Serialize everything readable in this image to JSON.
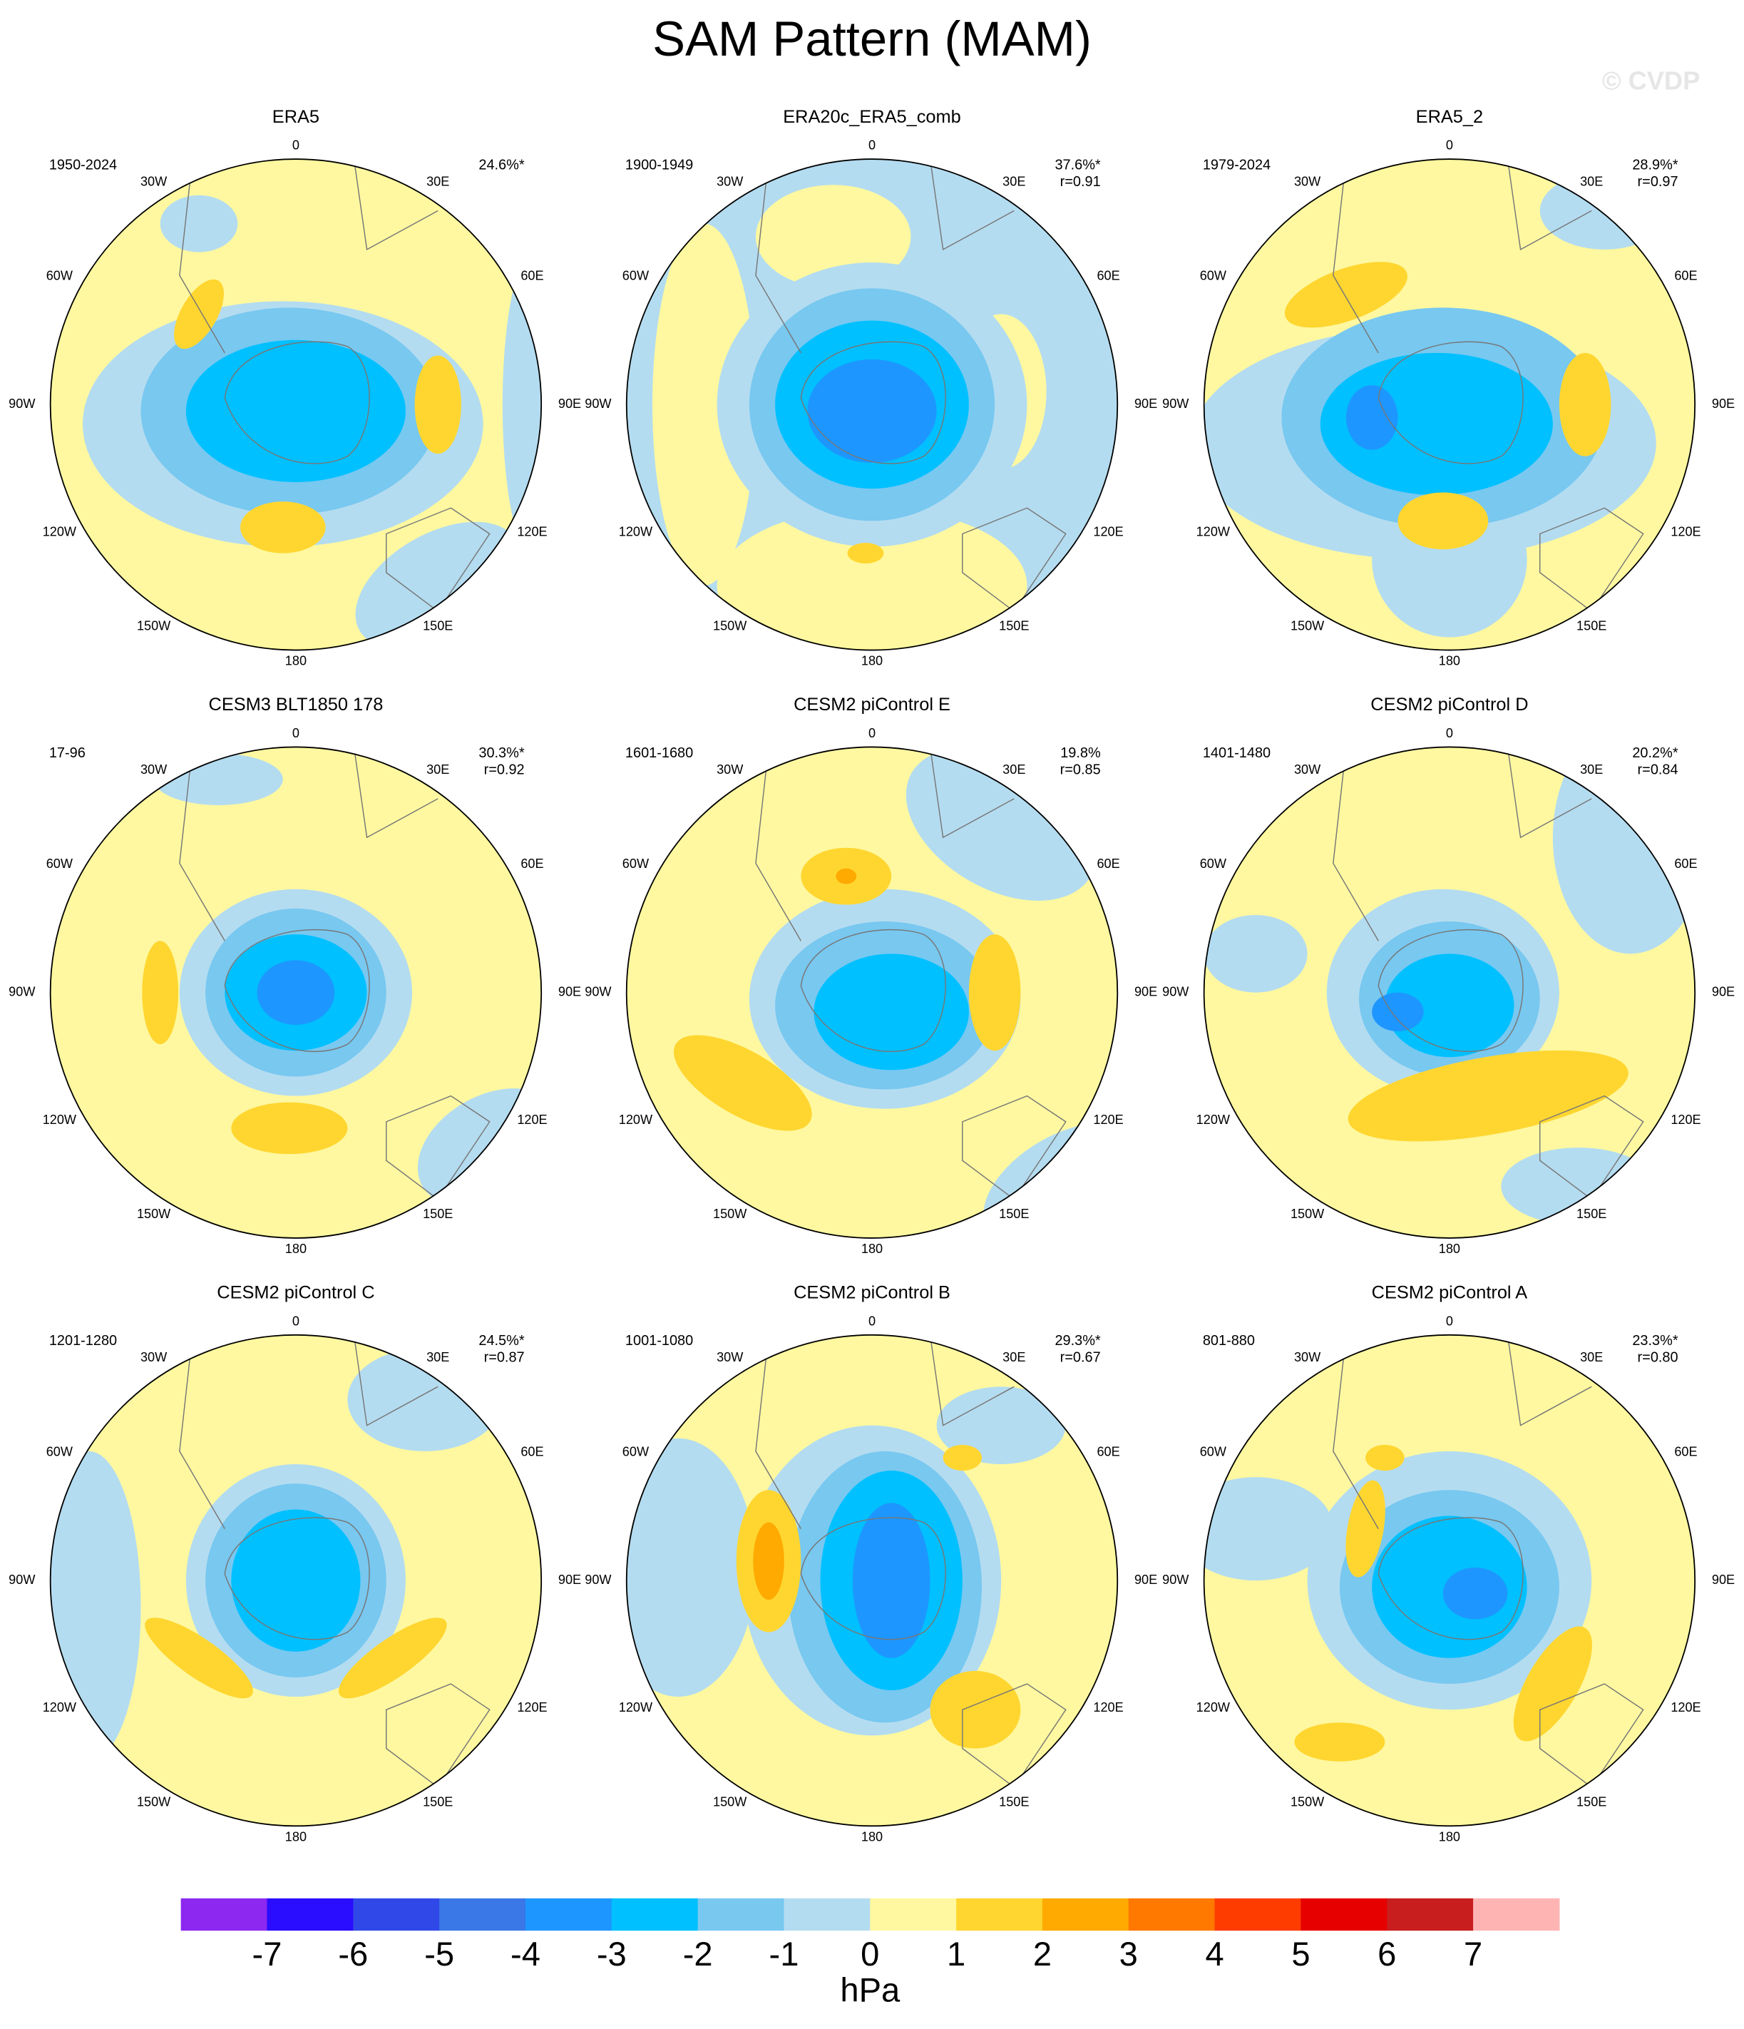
{
  "title": "SAM Pattern (MAM)",
  "watermark": "© CVDP",
  "lon_labels": [
    "0",
    "30E",
    "60E",
    "90E",
    "120E",
    "150E",
    "180",
    "150W",
    "120W",
    "90W",
    "60W",
    "30W"
  ],
  "panels": [
    {
      "title": "ERA5",
      "period": "1950-2024",
      "variance": "24.6%*"
    },
    {
      "title": "ERA20c_ERA5_comb",
      "period": "1900-1949",
      "variance": "37.6%*",
      "r": "r=0.91"
    },
    {
      "title": "ERA5_2",
      "period": "1979-2024",
      "variance": "28.9%*",
      "r": "r=0.97"
    },
    {
      "title": "CESM3 BLT1850 178",
      "period": "17-96",
      "variance": "30.3%*",
      "r": "r=0.92"
    },
    {
      "title": "CESM2 piControl E",
      "period": "1601-1680",
      "variance": "19.8%",
      "r": "r=0.85"
    },
    {
      "title": "CESM2 piControl D",
      "period": "1401-1480",
      "variance": "20.2%*",
      "r": "r=0.84"
    },
    {
      "title": "CESM2 piControl C",
      "period": "1201-1280",
      "variance": "24.5%*",
      "r": "r=0.87"
    },
    {
      "title": "CESM2 piControl B",
      "period": "1001-1080",
      "variance": "29.3%*",
      "r": "r=0.67"
    },
    {
      "title": "CESM2 piControl A",
      "period": "801-880",
      "variance": "23.3%*",
      "r": "r=0.80"
    }
  ],
  "colorbar": {
    "colors": [
      "#8c28f0",
      "#2a0cff",
      "#3048e8",
      "#3a78e8",
      "#1e96ff",
      "#00c0ff",
      "#78c8f0",
      "#b4dcf0",
      "#fff8a0",
      "#ffd630",
      "#ffaa00",
      "#ff7800",
      "#ff3c00",
      "#e60000",
      "#c81e1e",
      "#ffb4b4"
    ],
    "ticks": [
      -7,
      -6,
      -5,
      -4,
      -3,
      -2,
      -1,
      0,
      1,
      2,
      3,
      4,
      5,
      6,
      7
    ],
    "label": "hPa"
  }
}
